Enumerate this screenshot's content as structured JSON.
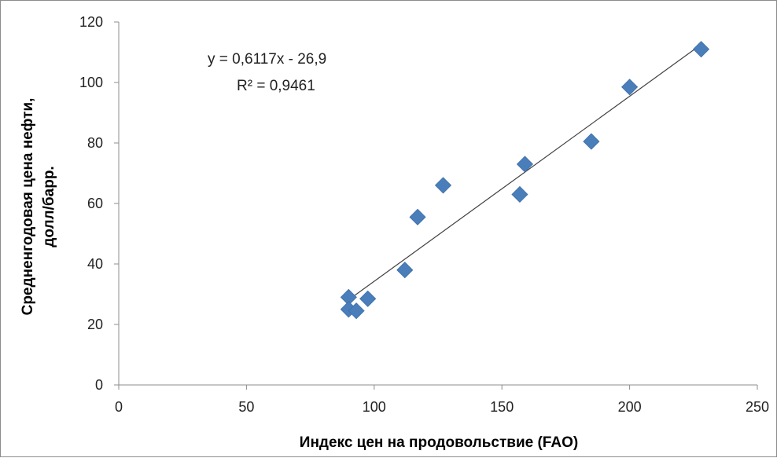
{
  "chart_data": {
    "type": "scatter",
    "title": "",
    "xlabel": "Индекс цен на продовольствие (FAO)",
    "ylabel_line1": "Средненгодовая цена нефти,",
    "ylabel_line2": "долл/барр.",
    "xlim": [
      0,
      250
    ],
    "ylim": [
      0,
      120
    ],
    "xticks": [
      0,
      50,
      100,
      150,
      200,
      250
    ],
    "yticks": [
      0,
      20,
      40,
      60,
      80,
      100,
      120
    ],
    "grid": false,
    "marker": "diamond",
    "marker_color": "#4a7ebb",
    "trendline_color": "#404040",
    "points": [
      {
        "x": 90,
        "y": 29
      },
      {
        "x": 90,
        "y": 25
      },
      {
        "x": 93,
        "y": 24.5
      },
      {
        "x": 97.5,
        "y": 28.5
      },
      {
        "x": 112,
        "y": 38
      },
      {
        "x": 117,
        "y": 55.5
      },
      {
        "x": 127,
        "y": 66
      },
      {
        "x": 157,
        "y": 63
      },
      {
        "x": 159,
        "y": 73
      },
      {
        "x": 185,
        "y": 80.5
      },
      {
        "x": 200,
        "y": 98.5
      },
      {
        "x": 228,
        "y": 111
      }
    ],
    "trendline": {
      "slope": 0.6117,
      "intercept": -26.9,
      "x_range": [
        90,
        228
      ],
      "equation_label": "y = 0,6117x - 26,9",
      "r2_label": "R² = 0,9461"
    }
  }
}
